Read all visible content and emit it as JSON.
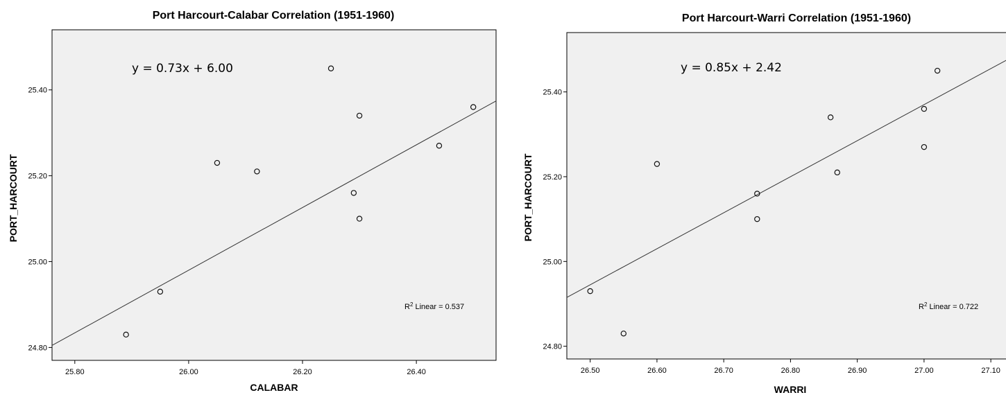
{
  "chart_data": [
    {
      "type": "scatter",
      "title": "Port Harcourt-Calabar Correlation (1951-1960)",
      "xlabel": "CALABAR",
      "ylabel": "PORT_HARCOURT",
      "xlim": [
        25.76,
        26.54
      ],
      "ylim": [
        24.77,
        25.54
      ],
      "xticks": [
        "25.80",
        "26.00",
        "26.20",
        "26.40"
      ],
      "yticks": [
        "24.80",
        "25.00",
        "25.20",
        "25.40"
      ],
      "xtick_values": [
        25.8,
        26.0,
        26.2,
        26.4
      ],
      "ytick_values": [
        24.8,
        25.0,
        25.2,
        25.4
      ],
      "points": {
        "x": [
          25.89,
          25.95,
          26.05,
          26.12,
          26.25,
          26.29,
          26.3,
          26.3,
          26.44,
          26.5
        ],
        "y": [
          24.83,
          24.93,
          25.23,
          25.21,
          25.45,
          25.16,
          25.34,
          25.1,
          25.27,
          25.36
        ]
      },
      "fit_line": {
        "slope": 0.73,
        "intercept": 6.0
      },
      "equation_label": "y = 0.73x + 6.00",
      "r2_label_prefix": "R",
      "r2_label_sup": "2",
      "r2_label_suffix": " Linear = 0.537",
      "background": "#f0f0f0",
      "grid": false
    },
    {
      "type": "scatter",
      "title": "Port Harcourt-Warri Correlation (1951-1960)",
      "xlabel": "WARRI",
      "ylabel": "PORT_HARCOURT",
      "xlim": [
        26.465,
        27.13
      ],
      "ylim": [
        24.77,
        25.54
      ],
      "xticks": [
        "26.50",
        "26.60",
        "26.70",
        "26.80",
        "26.90",
        "27.00",
        "27.10"
      ],
      "yticks": [
        "24.80",
        "25.00",
        "25.20",
        "25.40"
      ],
      "xtick_values": [
        26.5,
        26.6,
        26.7,
        26.8,
        26.9,
        27.0,
        27.1
      ],
      "ytick_values": [
        24.8,
        25.0,
        25.2,
        25.4
      ],
      "points": {
        "x": [
          26.5,
          26.55,
          26.6,
          26.75,
          26.75,
          26.86,
          26.87,
          27.0,
          27.0,
          27.02
        ],
        "y": [
          24.93,
          24.83,
          25.23,
          25.16,
          25.1,
          25.34,
          25.21,
          25.36,
          25.27,
          25.45
        ]
      },
      "fit_line": {
        "slope": 0.85,
        "intercept": 2.42
      },
      "equation_label": "y = 0.85x + 2.42",
      "r2_label_prefix": "R",
      "r2_label_sup": "2",
      "r2_label_suffix": " Linear = 0.722",
      "background": "#f0f0f0",
      "grid": false
    }
  ]
}
